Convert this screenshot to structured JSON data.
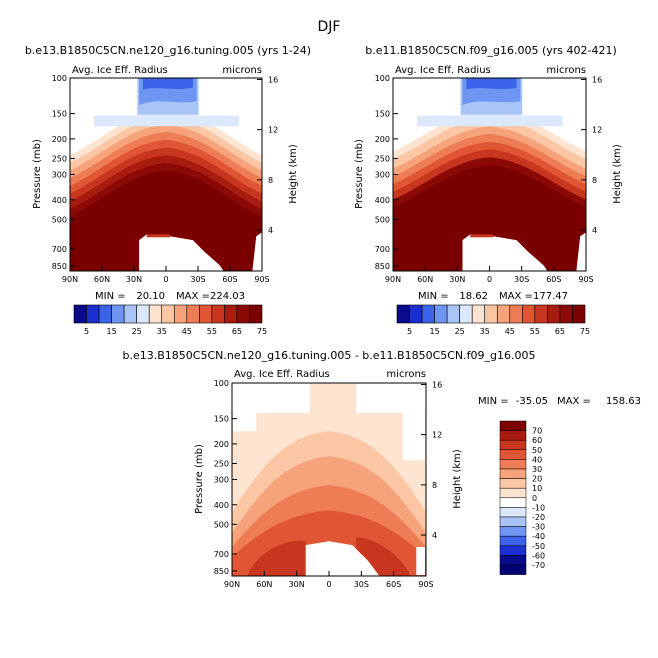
{
  "season": "DJF",
  "levels_abs": [
    5,
    15,
    25,
    35,
    45,
    55,
    65,
    75
  ],
  "levels_diff": [
    70,
    60,
    50,
    40,
    30,
    20,
    10,
    0,
    -10,
    -20,
    -30,
    -40,
    -50,
    -60,
    -70
  ],
  "colors_abs": [
    "#0a0a8c",
    "#1b2fd0",
    "#3a63ea",
    "#6f95f2",
    "#a9c4f7",
    "#dce8fb",
    "#fde4d0",
    "#fbc6a3",
    "#f6a27a",
    "#ee7c54",
    "#e05634",
    "#c8361f",
    "#a81c10",
    "#8b0a05",
    "#7a0000"
  ],
  "colors_diff": [
    "#7a0000",
    "#a81c10",
    "#c8361f",
    "#e05634",
    "#ee7c54",
    "#f6a27a",
    "#fbc6a3",
    "#fde4d0",
    "#ffffff",
    "#dce8fb",
    "#a9c4f7",
    "#6f95f2",
    "#3a63ea",
    "#1b2fd0",
    "#0a0a8c",
    "#000072"
  ],
  "chart_data": [
    {
      "type": "heatmap",
      "title": "b.e13.B1850C5CN.ne120_g16.tuning.005 (yrs 1-24)",
      "variable": "Avg. Ice Eff. Radius",
      "units": "microns",
      "ylabel": "Pressure (mb)",
      "ylabel_right": "Height (km)",
      "x_ticks": [
        "90N",
        "60N",
        "30N",
        "0",
        "30S",
        "60S",
        "90S"
      ],
      "y_ticks": [
        "100",
        "150",
        "200",
        "250",
        "300",
        "400",
        "500",
        "700",
        "850"
      ],
      "y_ticks_right": [
        "16",
        "12",
        "8",
        "4"
      ],
      "min_label": "MIN =",
      "min_value": "20.10",
      "max_label": "MAX =",
      "max_value": "224.03"
    },
    {
      "type": "heatmap",
      "title": "b.e11.B1850C5CN.f09_g16.005 (yrs 402-421)",
      "variable": "Avg. Ice Eff. Radius",
      "units": "microns",
      "ylabel": "Pressure (mb)",
      "ylabel_right": "Height (km)",
      "x_ticks": [
        "90N",
        "60N",
        "30N",
        "0",
        "30S",
        "60S",
        "90S"
      ],
      "y_ticks": [
        "100",
        "150",
        "200",
        "250",
        "300",
        "400",
        "500",
        "700",
        "850"
      ],
      "y_ticks_right": [
        "16",
        "12",
        "8",
        "4"
      ],
      "min_label": "MIN =",
      "min_value": "18.62",
      "max_label": "MAX =",
      "max_value": "177.47"
    },
    {
      "type": "heatmap",
      "title": "b.e13.B1850C5CN.ne120_g16.tuning.005 - b.e11.B1850C5CN.f09_g16.005",
      "variable": "Avg. Ice Eff. Radius",
      "units": "microns",
      "ylabel": "Pressure (mb)",
      "ylabel_right": "Height (km)",
      "x_ticks": [
        "90N",
        "60N",
        "30N",
        "0",
        "30S",
        "60S",
        "90S"
      ],
      "y_ticks": [
        "100",
        "150",
        "200",
        "250",
        "300",
        "400",
        "500",
        "700",
        "850"
      ],
      "y_ticks_right": [
        "16",
        "12",
        "8",
        "4"
      ],
      "min_label": "MIN =",
      "min_value": "-35.05",
      "max_label": "MAX =",
      "max_value": "158.63"
    }
  ]
}
